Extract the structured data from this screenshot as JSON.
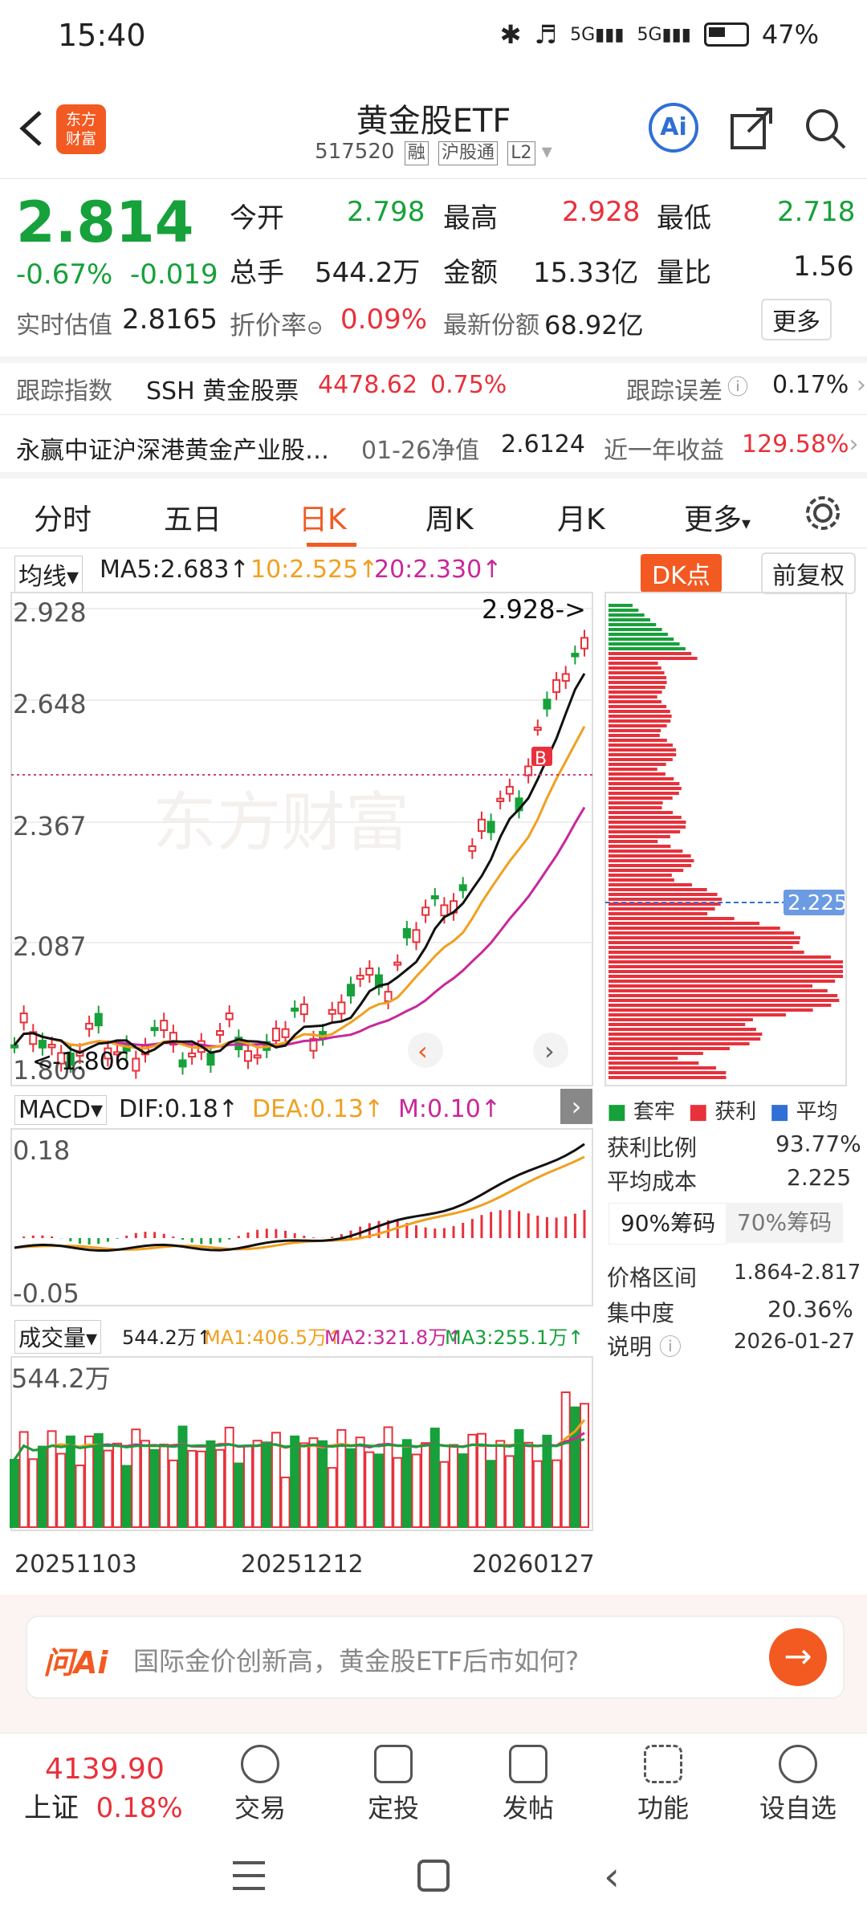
{
  "status": {
    "time": "15:40",
    "network1": "5G",
    "network2": "5G",
    "battery": "47%"
  },
  "header": {
    "title": "黄金股ETF",
    "code": "517520",
    "tags": [
      "融",
      "沪股通",
      "L2"
    ],
    "logo_line1": "东方",
    "logo_line2": "财富",
    "ai_label": "Ai"
  },
  "quote": {
    "price": "2.814",
    "change_pct": "-0.67%",
    "change": "-0.019",
    "open_label": "今开",
    "open": "2.798",
    "high_label": "最高",
    "high": "2.928",
    "low_label": "最低",
    "low": "2.718",
    "vol_label": "总手",
    "vol": "544.2万",
    "amount_label": "金额",
    "amount": "15.33亿",
    "ratio_label": "量比",
    "ratio": "1.56",
    "est_label": "实时估值",
    "est": "2.8165",
    "premium_label": "折价率",
    "premium": "0.09%",
    "shares_label": "最新份额",
    "shares": "68.92亿",
    "more_label": "更多"
  },
  "tracking": {
    "index_label": "跟踪指数",
    "index_name": "SSH 黄金股票",
    "index_value": "4478.62",
    "index_change": "0.75%",
    "error_label": "跟踪误差",
    "error_value": "0.17%",
    "fund_name": "永赢中证沪深港黄金产业股…",
    "nav_label": "01-26净值",
    "nav_value": "2.6124",
    "return_label": "近一年收益",
    "return_value": "129.58%"
  },
  "tabs": [
    {
      "label": "分时",
      "active": false
    },
    {
      "label": "五日",
      "active": false
    },
    {
      "label": "日K",
      "active": true
    },
    {
      "label": "周K",
      "active": false
    },
    {
      "label": "月K",
      "active": false
    },
    {
      "label": "更多",
      "active": false
    }
  ],
  "kline": {
    "indicator": "均线",
    "ma5": "MA5:2.683↑",
    "ma10": "10:2.525↑",
    "ma20": "20:2.330↑",
    "dk_label": "DK点",
    "adjust_label": "前复权",
    "y_labels": [
      "2.928",
      "2.648",
      "2.367",
      "2.087"
    ],
    "max_marker": "2.928->",
    "min_marker": "1.806",
    "min_marker_full": "<-1.806",
    "cost_label": "2.225",
    "watermark": "东方财富"
  },
  "macd": {
    "name": "MACD",
    "dif": "DIF:0.18↑",
    "dea": "DEA:0.13↑",
    "m": "M:0.10↑",
    "top_label": "0.18",
    "bottom_label": "-0.05"
  },
  "volume": {
    "name": "成交量",
    "current": "544.2万↑",
    "ma1": "MA1:406.5万↑",
    "ma2": "MA2:321.8万↑",
    "ma3": "MA3:255.1万↑",
    "top_label": "544.2万",
    "dates": [
      "20251103",
      "20251212",
      "20260127"
    ]
  },
  "chips": {
    "legend": [
      {
        "label": "套牢",
        "color": "#16a13a"
      },
      {
        "label": "获利",
        "color": "#e8313b"
      },
      {
        "label": "平均",
        "color": "#2f6fd6"
      }
    ],
    "profit_label": "获利比例",
    "profit_value": "93.77%",
    "avg_label": "平均成本",
    "avg_value": "2.225",
    "tab90": "90%筹码",
    "tab70": "70%筹码",
    "range_label": "价格区间",
    "range_value": "1.864-2.817",
    "conc_label": "集中度",
    "conc_value": "20.36%",
    "note_label": "说明",
    "note_value": "2026-01-27"
  },
  "ai_bar": {
    "brand": "问Ai",
    "prompt": "国际金价创新高，黄金股ETF后市如何?"
  },
  "bottom": {
    "index_value": "4139.90",
    "index_name": "上证",
    "index_change": "0.18%",
    "items": [
      "交易",
      "定投",
      "发帖",
      "功能",
      "设自选"
    ]
  },
  "colors": {
    "red": "#e8313b",
    "green": "#16a13a",
    "orange": "#f25a22",
    "ma5": "#111111",
    "ma10": "#f0a020",
    "ma20": "#c8289a"
  }
}
